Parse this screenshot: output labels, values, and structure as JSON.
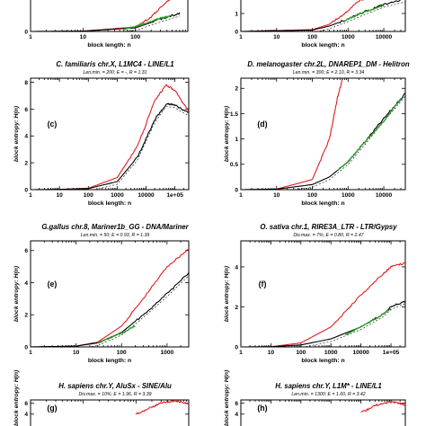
{
  "chart_data": [
    {
      "id": "top-left-partial",
      "type": "line",
      "title": "",
      "subtitle": "",
      "panel_label": "",
      "xlabel": "block length: n",
      "ylabel": "",
      "xscale": "log",
      "xlim": [
        1,
        1000
      ],
      "ylim": [
        0,
        2
      ],
      "xtick_labels": [
        "1",
        "10",
        "100"
      ],
      "ytick_labels": [
        "0"
      ],
      "series": [
        {
          "color": "#e41a1c",
          "x": [
            1,
            10,
            100,
            200,
            400,
            700
          ],
          "y": [
            0,
            0.02,
            0.25,
            0.8,
            1.7,
            2.0
          ]
        },
        {
          "color": "#000000",
          "x": [
            1,
            10,
            100,
            200,
            400,
            700
          ],
          "y": [
            0,
            0.02,
            0.2,
            0.5,
            0.8,
            1.0
          ]
        },
        {
          "color": "#2ca02c",
          "x": [
            60,
            120,
            200,
            300,
            450
          ],
          "y": [
            0.12,
            0.35,
            0.55,
            0.75,
            0.85
          ]
        }
      ]
    },
    {
      "id": "top-right-partial",
      "type": "line",
      "title": "",
      "subtitle": "",
      "panel_label": "",
      "xlabel": "block length: n",
      "ylabel": "",
      "xscale": "log",
      "xlim": [
        1,
        40000
      ],
      "ylim": [
        0,
        2
      ],
      "xtick_labels": [
        "1",
        "10",
        "100",
        "1000",
        "10000"
      ],
      "ytick_labels": [
        "0",
        "1"
      ],
      "series": [
        {
          "color": "#e41a1c",
          "x": [
            1,
            100,
            300,
            800,
            2000,
            5000
          ],
          "y": [
            0,
            0.1,
            0.4,
            1.0,
            1.7,
            2.0
          ]
        },
        {
          "color": "#000000",
          "x": [
            1,
            100,
            300,
            1000,
            3000,
            10000,
            40000
          ],
          "y": [
            0,
            0.08,
            0.3,
            0.7,
            1.1,
            1.5,
            1.8
          ]
        },
        {
          "color": "#2ca02c",
          "x": [
            800,
            2000,
            5000,
            10000
          ],
          "y": [
            0.6,
            0.95,
            1.25,
            1.45
          ]
        }
      ]
    },
    {
      "id": "panel-c",
      "type": "line",
      "title": "C. familiaris chr.X, L1MC4 - LINE/L1",
      "subtitle": "Len.min. = 200;   E = -, R = 1.31",
      "panel_label": "(c)",
      "xlabel": "block length: n",
      "ylabel": "block entropy: H(n)",
      "xscale": "log",
      "xlim": [
        1,
        300000
      ],
      "ylim": [
        0,
        8.3
      ],
      "xtick_labels": [
        "1",
        "10",
        "100",
        "1000",
        "10000",
        "1e+05"
      ],
      "ytick_labels": [
        "0",
        "2",
        "4",
        "6",
        "8"
      ],
      "series": [
        {
          "color": "#e41a1c",
          "x": [
            1,
            10,
            100,
            1000,
            5000,
            20000,
            50000,
            100000,
            300000
          ],
          "y": [
            0,
            0.02,
            0.1,
            0.9,
            3.2,
            6.6,
            7.8,
            7.4,
            5.8
          ]
        },
        {
          "color": "#000000",
          "x": [
            1,
            10,
            100,
            1000,
            5000,
            20000,
            50000,
            100000,
            300000
          ],
          "y": [
            0,
            0.02,
            0.08,
            0.6,
            2.4,
            5.2,
            6.4,
            6.3,
            5.7
          ]
        }
      ]
    },
    {
      "id": "panel-d",
      "type": "line",
      "title": "D. melanogaster chr.2L, DNAREP1_DM - Helitron",
      "subtitle": "Len.min. = 300;   E = 2.10, R = 3.34",
      "panel_label": "(d)",
      "xlabel": "block length: n",
      "ylabel": "block entropy: H(n)",
      "xscale": "log",
      "xlim": [
        1,
        40000
      ],
      "ylim": [
        0,
        2.2
      ],
      "xtick_labels": [
        "1",
        "10",
        "100",
        "1000",
        "10000"
      ],
      "ytick_labels": [
        "0",
        "0.5",
        "1",
        "1.5",
        "2"
      ],
      "series": [
        {
          "color": "#e41a1c",
          "x": [
            1,
            10,
            100,
            300,
            500,
            700
          ],
          "y": [
            0,
            0.01,
            0.2,
            1.0,
            1.8,
            2.2
          ]
        },
        {
          "color": "#000000",
          "x": [
            1,
            10,
            100,
            300,
            1000,
            3000,
            10000,
            40000
          ],
          "y": [
            0,
            0.01,
            0.1,
            0.25,
            0.55,
            0.95,
            1.4,
            1.9
          ]
        },
        {
          "color": "#2ca02c",
          "x": [
            500,
            1000,
            3000,
            10000,
            30000
          ],
          "y": [
            0.38,
            0.55,
            0.95,
            1.35,
            1.8
          ]
        }
      ]
    },
    {
      "id": "panel-e",
      "type": "line",
      "title": "G.gallus chr.8, Mariner1b_GG - DNA/Mariner",
      "subtitle": "Len.min. = 50;   E = 0.93, R = 1.39",
      "panel_label": "(e)",
      "xlabel": "block length: n",
      "ylabel": "block entropy: H(n)",
      "xscale": "log",
      "xlim": [
        1,
        3000
      ],
      "ylim": [
        0,
        6.6
      ],
      "xtick_labels": [
        "1",
        "10",
        "100",
        "1000"
      ],
      "ytick_labels": [
        "0",
        "2",
        "4",
        "6"
      ],
      "series": [
        {
          "color": "#e41a1c",
          "x": [
            1,
            10,
            30,
            100,
            300,
            1000,
            3000
          ],
          "y": [
            0,
            0.05,
            0.3,
            1.3,
            3.0,
            5.0,
            6.1
          ]
        },
        {
          "color": "#000000",
          "x": [
            1,
            10,
            30,
            100,
            300,
            1000,
            3000
          ],
          "y": [
            0,
            0.05,
            0.25,
            0.9,
            2.0,
            3.3,
            4.6
          ]
        },
        {
          "color": "#2ca02c",
          "x": [
            30,
            100,
            200
          ],
          "y": [
            0.25,
            0.85,
            1.3
          ]
        }
      ]
    },
    {
      "id": "panel-f",
      "type": "line",
      "title": "O. sativa chr.1, RIRE3A_LTR - LTR/Gypsy",
      "subtitle": "Div.max. = 7%;   E = 0.80, R = 2.47",
      "panel_label": "(f)",
      "xlabel": "block length: n",
      "ylabel": "block entropy: H(n)",
      "xscale": "log",
      "xlim": [
        1,
        300000
      ],
      "ylim": [
        0,
        5.3
      ],
      "xtick_labels": [
        "1",
        "10",
        "100",
        "1000",
        "10000",
        "1e+05"
      ],
      "ytick_labels": [
        "0",
        "2",
        "4"
      ],
      "series": [
        {
          "color": "#e41a1c",
          "x": [
            1,
            10,
            100,
            1000,
            10000,
            50000,
            100000,
            300000
          ],
          "y": [
            0,
            0.01,
            0.2,
            1.0,
            2.6,
            3.6,
            4.0,
            4.2
          ]
        },
        {
          "color": "#000000",
          "x": [
            1,
            10,
            100,
            1000,
            10000,
            50000,
            100000,
            300000
          ],
          "y": [
            0,
            0.01,
            0.1,
            0.4,
            1.0,
            1.6,
            2.0,
            2.3
          ]
        },
        {
          "color": "#2ca02c",
          "x": [
            3000,
            10000,
            30000,
            100000
          ],
          "y": [
            0.6,
            1.0,
            1.4,
            1.9
          ]
        }
      ]
    },
    {
      "id": "panel-g",
      "type": "line",
      "title": "H. sapiens chr.Y, AluSx - SINE/Alu",
      "subtitle": "Div.max. = 10%;   E = 1.96, R = 3.39",
      "panel_label": "(g)",
      "xlabel": "",
      "ylabel": "block entropy: H(n)",
      "xscale": "log",
      "xlim": [
        1,
        1000
      ],
      "ylim": [
        0,
        6.6
      ],
      "xtick_labels": [],
      "ytick_labels": [
        "6",
        "4"
      ],
      "series": [
        {
          "color": "#e41a1c",
          "x": [
            100,
            200,
            300,
            500,
            1000
          ],
          "y": [
            4.0,
            5.3,
            6.1,
            6.4,
            6.0
          ]
        }
      ]
    },
    {
      "id": "panel-h",
      "type": "line",
      "title": "H. sapiens chr.Y, L1M* - LINE/L1",
      "subtitle": "Len.min. = 1300;   E = 1.60, R = 3.42",
      "panel_label": "(h)",
      "xlabel": "",
      "ylabel": "block entropy: H(n)",
      "xscale": "log",
      "xlim": [
        1,
        300000
      ],
      "ylim": [
        0,
        6.6
      ],
      "xtick_labels": [],
      "ytick_labels": [
        "6",
        "4"
      ],
      "series": [
        {
          "color": "#e41a1c",
          "x": [
            10000,
            30000,
            100000,
            200000,
            300000
          ],
          "y": [
            4.2,
            5.6,
            6.3,
            6.0,
            5.6
          ]
        }
      ]
    }
  ]
}
